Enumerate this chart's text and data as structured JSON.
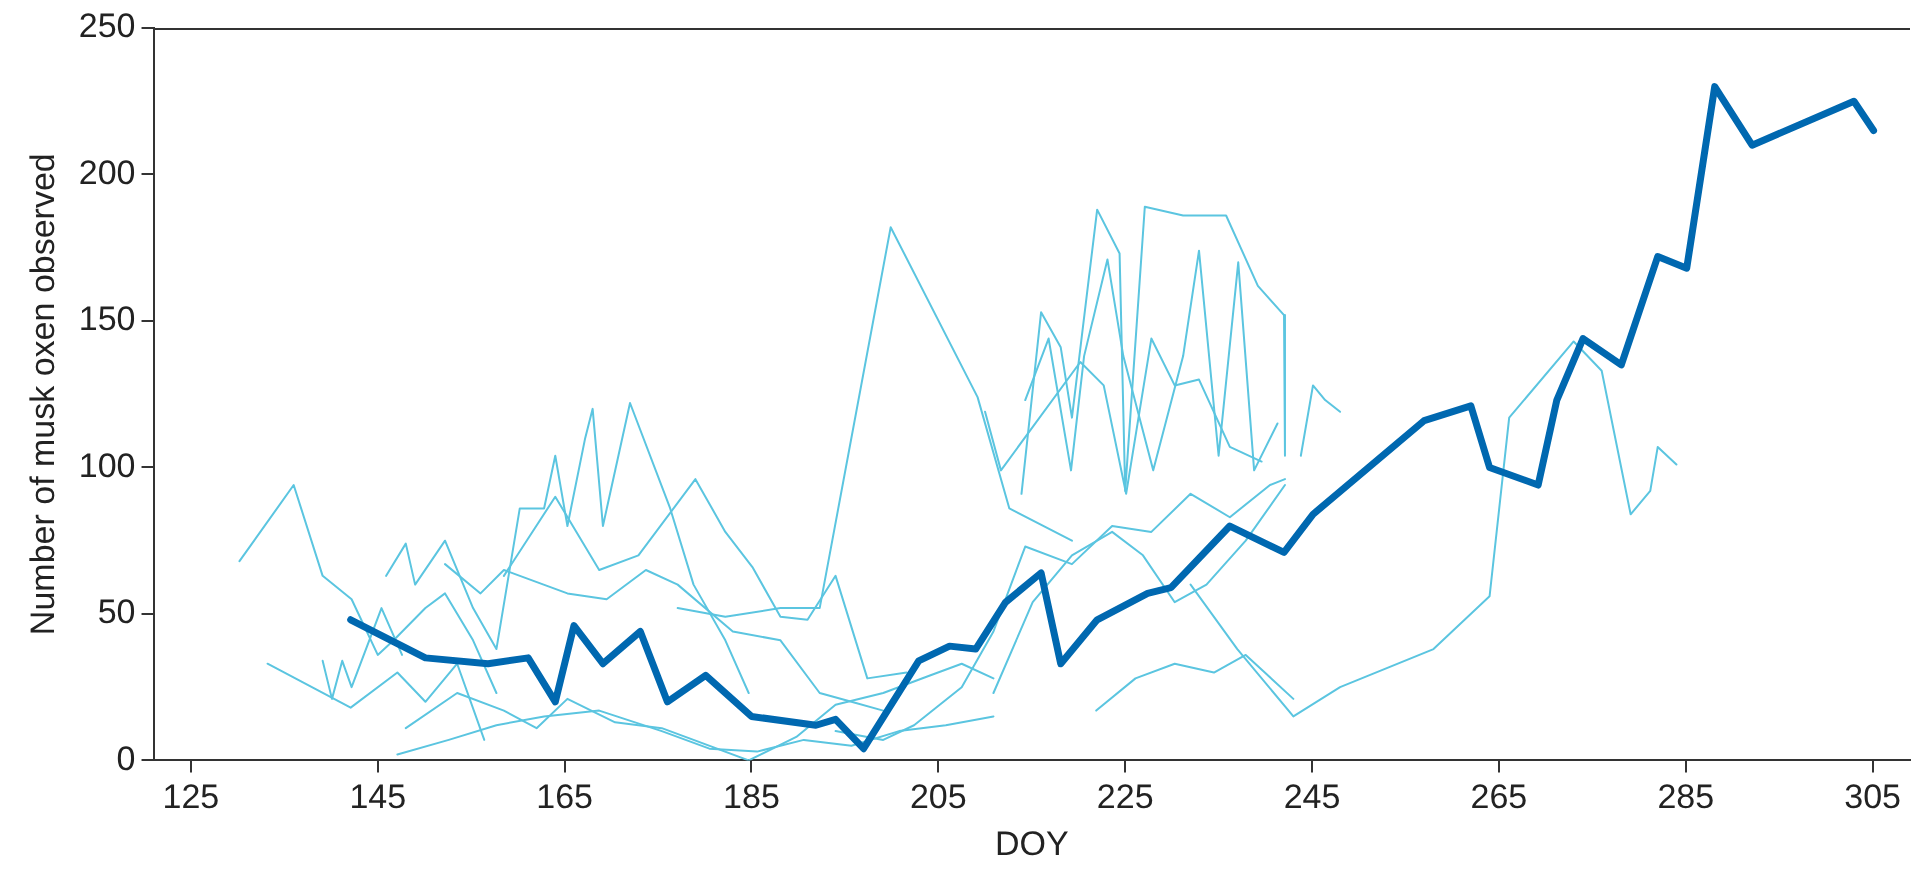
{
  "chart_data": {
    "type": "line",
    "xlabel": "DOY",
    "ylabel": "Number of musk oxen observed",
    "xlim": [
      121,
      309
    ],
    "ylim": [
      0,
      250
    ],
    "xticks": [
      125,
      145,
      165,
      185,
      205,
      225,
      245,
      265,
      285,
      305
    ],
    "yticks": [
      0,
      50,
      100,
      150,
      200,
      250
    ],
    "grid": false,
    "legend": false,
    "marker": "none",
    "line_style": "solid",
    "series": [
      {
        "color": "#5bc5e0",
        "x": [
          130.2,
          136,
          139.1,
          142.2,
          145,
          146.7,
          150.1,
          152.2,
          155.2,
          157.7
        ],
        "values": [
          68,
          94,
          63,
          55,
          36,
          41,
          52,
          57,
          41,
          23
        ]
      },
      {
        "color": "#5bc5e0",
        "x": [
          133.2,
          142.1,
          147.1,
          150.1,
          153.5,
          156.4
        ],
        "values": [
          33,
          18,
          30,
          20,
          33,
          7
        ]
      },
      {
        "color": "#5bc5e0",
        "x": [
          139.1,
          140.1,
          141.2,
          142.2,
          145.4,
          147.6
        ],
        "values": [
          34,
          21,
          34,
          25,
          52,
          36
        ]
      },
      {
        "color": "#5bc5e0",
        "x": [
          145.9,
          148,
          149,
          152.2,
          155.2,
          157.7,
          160.2,
          162.8,
          164,
          165.3,
          167.2,
          168,
          169.1,
          172,
          176.3,
          178.8,
          182.2,
          184.7
        ],
        "values": [
          63,
          74,
          60,
          75,
          52,
          38,
          86,
          86,
          104,
          80,
          110,
          120,
          80,
          122,
          86,
          60,
          41,
          23
        ]
      },
      {
        "color": "#5bc5e0",
        "x": [
          158.5,
          164,
          168.7,
          172.9,
          179,
          182.2,
          185.1,
          188.1,
          191,
          194,
          197.4,
          201.6
        ],
        "values": [
          63,
          90,
          65,
          70,
          96,
          78,
          66,
          49,
          48,
          63,
          28,
          30
        ]
      },
      {
        "color": "#5bc5e0",
        "x": [
          177.1,
          182.2,
          188.1,
          192.3,
          199.9,
          209.2,
          212.6,
          219.3
        ],
        "values": [
          52,
          49,
          52,
          52,
          182,
          124,
          86,
          75
        ]
      },
      {
        "color": "#5bc5e0",
        "x": [
          213.9,
          216,
          218.1,
          219.3,
          222,
          224.4,
          225,
          227.1,
          231.2,
          235.8,
          239.2,
          242,
          242.1
        ],
        "values": [
          91,
          153,
          141,
          117,
          188,
          173,
          92,
          189,
          186,
          186,
          162,
          152,
          104
        ]
      },
      {
        "color": "#5bc5e0",
        "x": [
          214.3,
          216.8,
          219.2,
          220.6,
          223.1,
          224.8,
          228,
          231.2,
          232.9,
          235,
          237.1,
          238.8,
          241.3
        ],
        "values": [
          123,
          144,
          99,
          138,
          171,
          138,
          99,
          138,
          174,
          104,
          170,
          99,
          115
        ]
      },
      {
        "color": "#5bc5e0",
        "x": [
          210,
          211.7,
          220.2,
          222.7,
          225.1,
          227.8,
          230.3,
          232.9,
          236.2,
          239.6
        ],
        "values": [
          119,
          99,
          136,
          128,
          91,
          144,
          128,
          130,
          107,
          102
        ]
      },
      {
        "color": "#5bc5e0",
        "x": [
          194,
          199.1,
          202.4,
          207.5,
          210.9,
          214.3,
          219.3,
          223.6,
          227.8,
          232,
          236.2,
          240.5,
          242.1
        ],
        "values": [
          10,
          7,
          12,
          25,
          44,
          73,
          67,
          80,
          78,
          91,
          83,
          94,
          96
        ]
      },
      {
        "color": "#5bc5e0",
        "x": [
          147.1,
          152.6,
          157.7,
          162.8,
          168.7,
          175.4,
          180.5,
          185.6,
          190.6,
          195.7,
          200.8,
          205.8,
          210.9
        ],
        "values": [
          2,
          7,
          12,
          15,
          17,
          10,
          4,
          3,
          7,
          5,
          10,
          12,
          15
        ]
      },
      {
        "color": "#5bc5e0",
        "x": [
          148,
          153.5,
          158.5,
          162,
          165.3,
          170.4,
          175.4,
          178.8,
          184.7,
          189.8,
          194,
          199.1,
          204.1,
          207.5,
          210.9
        ],
        "values": [
          11,
          23,
          17,
          11,
          21,
          13,
          11,
          7,
          0,
          8,
          19,
          23,
          29,
          33,
          28
        ]
      },
      {
        "color": "#5bc5e0",
        "x": [
          152.2,
          156,
          158.5,
          165.3,
          169.5,
          173.7,
          177.1,
          183,
          188.1,
          192.3,
          195.7,
          199.1
        ],
        "values": [
          67,
          57,
          65,
          57,
          55,
          65,
          60,
          44,
          41,
          23,
          20,
          17
        ]
      },
      {
        "color": "#5bc5e0",
        "x": [
          221.9,
          226.1,
          230.3,
          234.5,
          237.9,
          243
        ],
        "values": [
          17,
          28,
          33,
          30,
          36,
          21
        ]
      },
      {
        "color": "#5bc5e0",
        "x": [
          210.9,
          215.1,
          219.3,
          223.6,
          226.9,
          230.3,
          233.7,
          237.9,
          242.1
        ],
        "values": [
          23,
          54,
          70,
          78,
          70,
          54,
          60,
          75,
          94
        ]
      },
      {
        "color": "#5bc5e0",
        "x": [
          232,
          237,
          243,
          248,
          258,
          264,
          266.1,
          273,
          276,
          279.1,
          281.2,
          282,
          284
        ],
        "values": [
          60,
          38,
          15,
          25,
          38,
          56,
          117,
          143,
          133,
          84,
          92,
          107,
          101
        ]
      },
      {
        "color": "#5bc5e0",
        "x": [
          243.8,
          245.1,
          246.4,
          248
        ],
        "values": [
          104,
          128,
          123,
          119
        ]
      },
      {
        "color": "#0068b0",
        "x": [
          142.1,
          150.1,
          156.8,
          161.1,
          164,
          166,
          169.1,
          173.1,
          176,
          180.1,
          185,
          191.9,
          194,
          197,
          202.9,
          206.2,
          209,
          212.2,
          216,
          218.1,
          222,
          227.4,
          229.9,
          236.2,
          242,
          245.1,
          257,
          262,
          264,
          269.2,
          271.2,
          274,
          278.1,
          282,
          285.1,
          288.1,
          292.1,
          303,
          305.1
        ],
        "values": [
          48,
          35,
          33,
          35,
          20,
          46,
          33,
          44,
          20,
          29,
          15,
          12,
          14,
          4,
          34,
          39,
          38,
          54,
          64,
          33,
          48,
          57,
          59,
          80,
          71,
          84,
          116,
          121,
          100,
          94,
          123,
          144,
          135,
          172,
          168,
          230,
          210,
          225,
          215
        ]
      }
    ]
  }
}
